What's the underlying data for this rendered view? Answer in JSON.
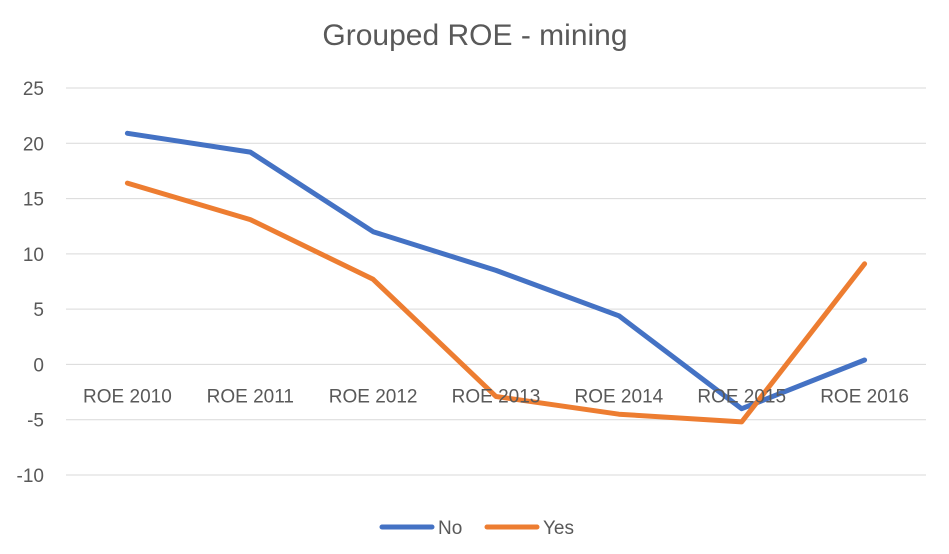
{
  "chart_data": {
    "type": "line",
    "title": "Grouped ROE - mining",
    "categories": [
      "ROE 2010",
      "ROE 2011",
      "ROE 2012",
      "ROE 2013",
      "ROE 2014",
      "ROE 2015",
      "ROE 2016"
    ],
    "y_ticks": [
      "25",
      "20",
      "15",
      "10",
      "5",
      "0",
      "-5",
      "-10"
    ],
    "ylim": [
      -10,
      25
    ],
    "grid": true,
    "legend_position": "bottom",
    "series": [
      {
        "name": "No",
        "color": "#4472c4",
        "values": [
          20.9,
          19.2,
          12.0,
          8.5,
          4.4,
          -4.0,
          0.4
        ]
      },
      {
        "name": "Yes",
        "color": "#ed7d31",
        "values": [
          16.4,
          13.1,
          7.7,
          -2.9,
          -4.5,
          -5.2,
          9.1
        ]
      }
    ]
  }
}
